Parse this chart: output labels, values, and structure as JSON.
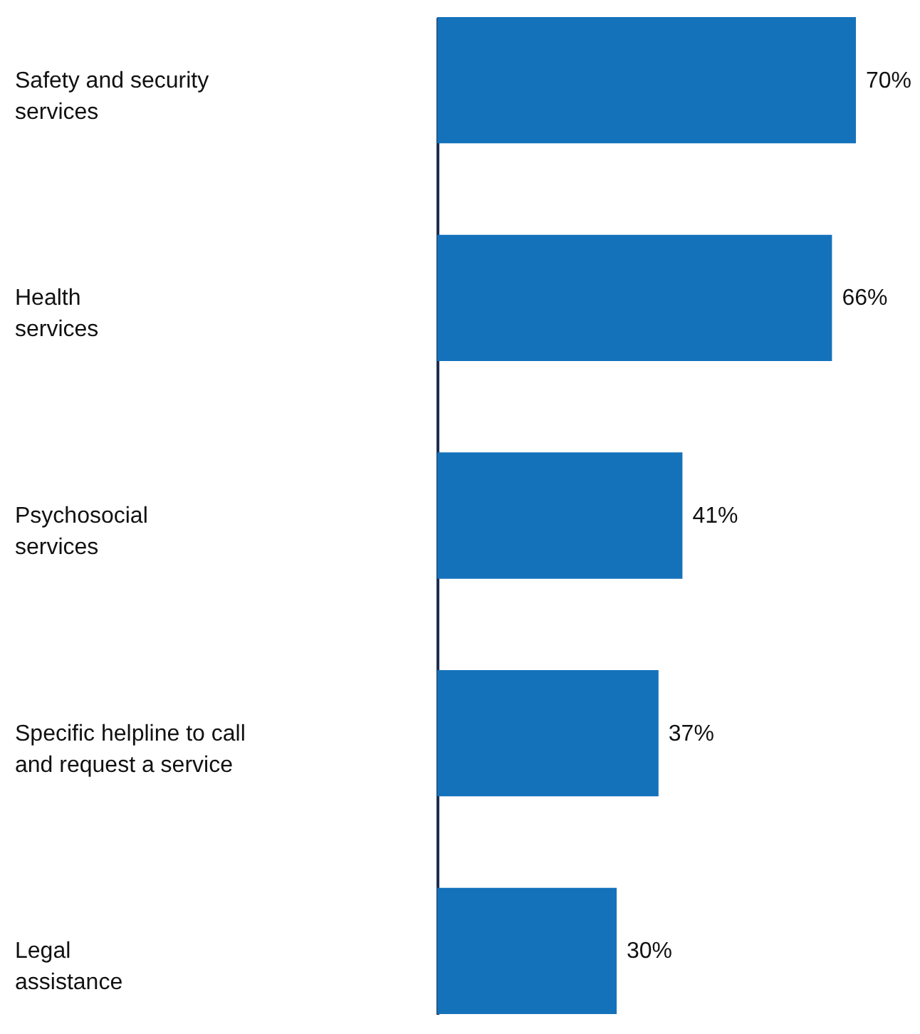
{
  "chart_data": {
    "type": "bar",
    "orientation": "horizontal",
    "categories": [
      "Safety and security\nservices",
      "Health\nservices",
      "Psychosocial\nservices",
      "Specific helpline to call\nand request a service",
      "Legal\nassistance"
    ],
    "values": [
      70,
      66,
      41,
      37,
      30
    ],
    "value_labels": [
      "70%",
      "66%",
      "41%",
      "37%",
      "30%"
    ],
    "color": "#1472bb"
  }
}
